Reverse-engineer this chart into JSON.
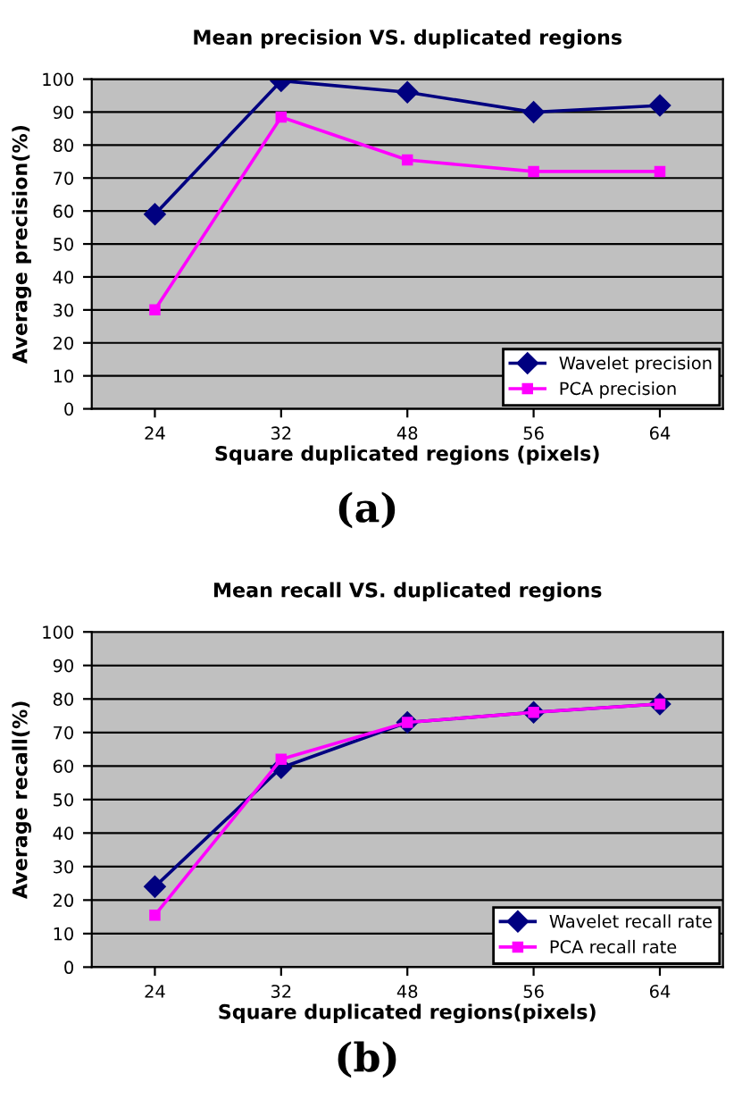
{
  "chart_data": [
    {
      "type": "line",
      "title": "Mean precision VS. duplicated regions",
      "xlabel": "Square duplicated regions (pixels)",
      "ylabel": "Average precision(%)",
      "categories": [
        "24",
        "32",
        "48",
        "56",
        "64"
      ],
      "ylim": [
        0,
        100
      ],
      "yticks": [
        0,
        10,
        20,
        30,
        40,
        50,
        60,
        70,
        80,
        90,
        100
      ],
      "grid": "y",
      "legend": "bottom right",
      "annotations": [
        "(a)"
      ],
      "series": [
        {
          "name": "Wavelet precision",
          "color": "#000080",
          "marker": "diamond",
          "values": [
            59,
            99.5,
            96,
            90,
            92
          ]
        },
        {
          "name": "PCA precision",
          "color": "#ff00ff",
          "marker": "square",
          "values": [
            30,
            88.5,
            75.5,
            72,
            72
          ]
        }
      ]
    },
    {
      "type": "line",
      "title": "Mean recall VS. duplicated regions",
      "xlabel": "Square duplicated regions(pixels)",
      "ylabel": "Average recall(%)",
      "categories": [
        "24",
        "32",
        "48",
        "56",
        "64"
      ],
      "ylim": [
        0,
        100
      ],
      "yticks": [
        0,
        10,
        20,
        30,
        40,
        50,
        60,
        70,
        80,
        90,
        100
      ],
      "grid": "y",
      "legend": "bottom right",
      "annotations": [
        "(b)"
      ],
      "series": [
        {
          "name": "Wavelet recall rate",
          "color": "#000080",
          "marker": "diamond",
          "values": [
            24,
            59.5,
            73,
            76,
            78.5
          ]
        },
        {
          "name": "PCA recall rate",
          "color": "#ff00ff",
          "marker": "square",
          "values": [
            15.5,
            62,
            73,
            76,
            78.5
          ]
        }
      ]
    }
  ]
}
